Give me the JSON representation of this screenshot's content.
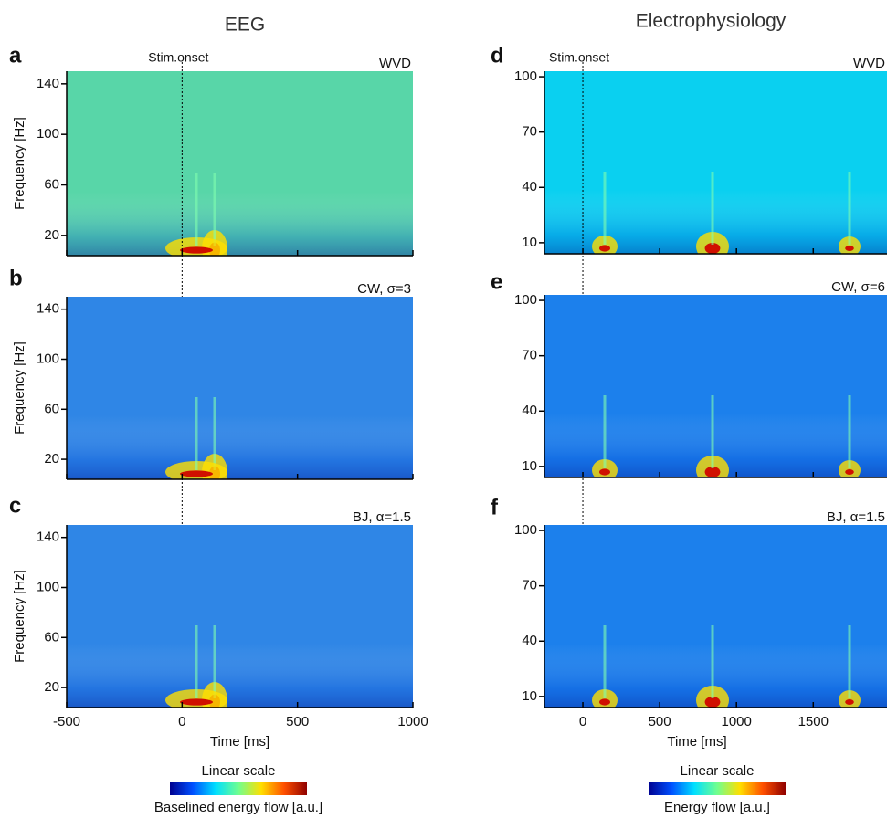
{
  "columns": [
    {
      "title": "EEG",
      "colorbar": {
        "scale": "Linear scale",
        "label": "Baselined energy flow [a.u.]",
        "colors": [
          "#00008f",
          "#0050ff",
          "#00dfff",
          "#70ff8f",
          "#ffdf00",
          "#ff5000",
          "#8f0000"
        ]
      }
    },
    {
      "title": "Electrophysiology",
      "colorbar": {
        "scale": "Linear scale",
        "label": "Energy flow [a.u.]",
        "colors": [
          "#00008f",
          "#0050ff",
          "#00dfff",
          "#70ff8f",
          "#ffdf00",
          "#ff5000",
          "#8f0000"
        ]
      }
    }
  ],
  "chart_data": [
    {
      "type": "heatmap",
      "panel": "a",
      "annotation": "WVD",
      "onset": {
        "label": "Stim.onset",
        "x": 0
      },
      "ylabel": "Frequency [Hz]",
      "color": "#58d6a8",
      "xlim": [
        -500,
        1000
      ],
      "xticks": [
        -500,
        0,
        500,
        1000
      ],
      "ylim": [
        4,
        150
      ],
      "yticks": [
        20,
        60,
        100,
        140
      ]
    },
    {
      "type": "heatmap",
      "panel": "b",
      "annotation": "CW, σ=3",
      "ylabel": "Frequency [Hz]",
      "color": "#2f86e6",
      "xlim": [
        -500,
        1000
      ],
      "xticks": [
        -500,
        0,
        500,
        1000
      ],
      "ylim": [
        4,
        150
      ],
      "yticks": [
        20,
        60,
        100,
        140
      ]
    },
    {
      "type": "heatmap",
      "panel": "c",
      "annotation": "BJ, α=1.5",
      "ylabel": "Frequency [Hz]",
      "xlabel": "Time [ms]",
      "color": "#2f86e6",
      "xlim": [
        -500,
        1000
      ],
      "xticks": [
        -500,
        0,
        500,
        1000
      ],
      "ylim": [
        4,
        150
      ],
      "yticks": [
        20,
        60,
        100,
        140
      ]
    },
    {
      "type": "heatmap",
      "panel": "d",
      "annotation": "WVD",
      "onset": {
        "label": "Stim.onset",
        "x": 0
      },
      "color": "#0ad0f0",
      "xlim": [
        -250,
        1980
      ],
      "xticks": [
        0,
        500,
        1000,
        1500
      ],
      "ylim": [
        4,
        103
      ],
      "yticks": [
        10,
        40,
        70,
        100
      ]
    },
    {
      "type": "heatmap",
      "panel": "e",
      "annotation": "CW, σ=6",
      "color": "#1c80ec",
      "xlim": [
        -250,
        1980
      ],
      "xticks": [
        0,
        500,
        1000,
        1500
      ],
      "ylim": [
        4,
        103
      ],
      "yticks": [
        10,
        40,
        70,
        100
      ]
    },
    {
      "type": "heatmap",
      "panel": "f",
      "annotation": "BJ, α=1.5",
      "xlabel": "Time [ms]",
      "color": "#1c80ec",
      "xlim": [
        -250,
        1980
      ],
      "xticks": [
        0,
        500,
        1000,
        1500
      ],
      "ylim": [
        4,
        103
      ],
      "yticks": [
        10,
        40,
        70,
        100
      ]
    }
  ]
}
